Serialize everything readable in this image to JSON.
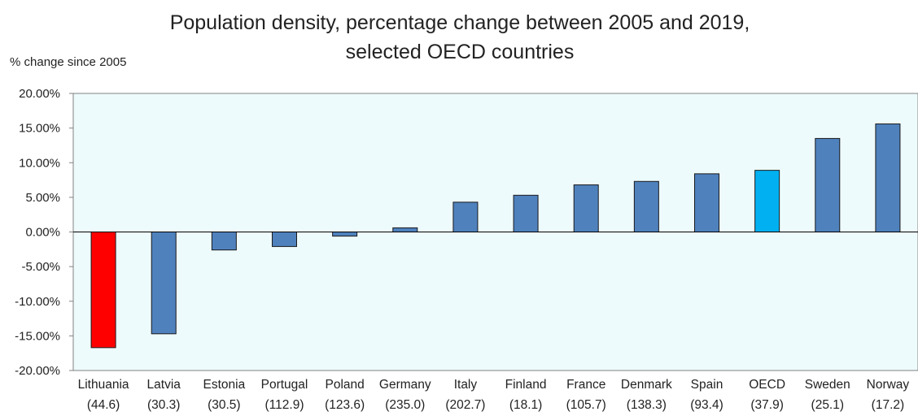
{
  "chart_data": {
    "type": "bar",
    "title": "Population density, percentage change between 2005 and 2019,",
    "subtitle": "selected OECD countries",
    "ylabel": "% change since 2005",
    "xlabel": "",
    "ylim": [
      -20,
      20
    ],
    "yticks": [
      20,
      15,
      10,
      5,
      0,
      -5,
      -10,
      -15,
      -20
    ],
    "ytick_labels": [
      "20.00%",
      "15.00%",
      "10.00%",
      "5.00%",
      "0.00%",
      "-5.00%",
      "-10.00%",
      "-15.00%",
      "-20.00%"
    ],
    "grid": false,
    "legend": "none",
    "plot_background": "#eefbfd",
    "categories": [
      "Lithuania",
      "Latvia",
      "Estonia",
      "Portugal",
      "Poland",
      "Germany",
      "Italy",
      "Finland",
      "France",
      "Denmark",
      "Spain",
      "OECD",
      "Sweden",
      "Norway"
    ],
    "category_sublabels": [
      "(44.6)",
      "(30.3)",
      "(30.5)",
      "(112.9)",
      "(123.6)",
      "(235.0)",
      "(202.7)",
      "(18.1)",
      "(105.7)",
      "(138.3)",
      "(93.4)",
      "(37.9)",
      "(25.1)",
      "(17.2)"
    ],
    "values": [
      -16.7,
      -14.7,
      -2.6,
      -2.1,
      -0.6,
      0.6,
      4.3,
      5.3,
      6.8,
      7.3,
      8.4,
      8.9,
      13.5,
      15.6
    ],
    "colors": [
      "#ff0000",
      "#4f81bd",
      "#4f81bd",
      "#4f81bd",
      "#4f81bd",
      "#4f81bd",
      "#4f81bd",
      "#4f81bd",
      "#4f81bd",
      "#4f81bd",
      "#4f81bd",
      "#00b0f0",
      "#4f81bd",
      "#4f81bd"
    ]
  }
}
